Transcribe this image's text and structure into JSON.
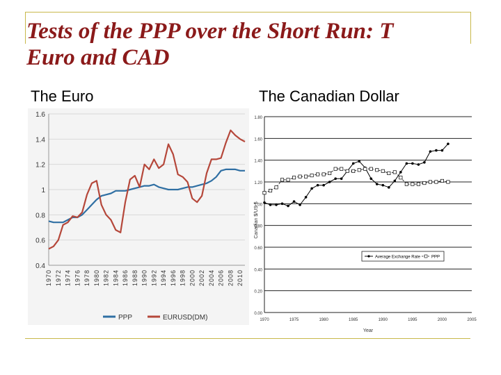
{
  "slide": {
    "title_line1": "Tests of the PPP over the Short Run: T",
    "title_line2": "Euro and CAD",
    "left_heading": "The Euro",
    "right_heading": "The Canadian Dollar",
    "colors": {
      "title": "#8b1a1a",
      "frame": "#c8b84a",
      "ppp_euro": "#2f6fa3",
      "eurusd": "#b5473a"
    }
  },
  "chart_data": [
    {
      "type": "line",
      "title": "",
      "xlabel": "",
      "ylabel": "",
      "ylim": [
        0.4,
        1.6
      ],
      "yticks": [
        "1.6",
        "1.4",
        "1.2",
        "1",
        "0.8",
        "0.6",
        "0.4"
      ],
      "ytick_values": [
        1.6,
        1.4,
        1.2,
        1.0,
        0.8,
        0.6,
        0.4
      ],
      "xlim": [
        1970,
        2011
      ],
      "xticks": [
        "1970",
        "1972",
        "1974",
        "1976",
        "1978",
        "1980",
        "1982",
        "1984",
        "1986",
        "1988",
        "1990",
        "1992",
        "1994",
        "1996",
        "1998",
        "2000",
        "2002",
        "2004",
        "2006",
        "2008",
        "2010"
      ],
      "xtick_values": [
        1970,
        1972,
        1974,
        1976,
        1978,
        1980,
        1982,
        1984,
        1986,
        1988,
        1990,
        1992,
        1994,
        1996,
        1998,
        2000,
        2002,
        2004,
        2006,
        2008,
        2010
      ],
      "grid": "horizontal",
      "legend": "bottom",
      "series": [
        {
          "name": "PPP",
          "color": "#2f6fa3",
          "x": [
            1970,
            1971,
            1972,
            1973,
            1974,
            1975,
            1976,
            1977,
            1978,
            1979,
            1980,
            1981,
            1982,
            1983,
            1984,
            1985,
            1986,
            1987,
            1988,
            1989,
            1990,
            1991,
            1992,
            1993,
            1994,
            1995,
            1996,
            1997,
            1998,
            1999,
            2000,
            2001,
            2002,
            2003,
            2004,
            2005,
            2006,
            2007,
            2008,
            2009,
            2010,
            2011
          ],
          "y": [
            0.75,
            0.74,
            0.74,
            0.74,
            0.76,
            0.78,
            0.78,
            0.8,
            0.84,
            0.88,
            0.92,
            0.95,
            0.96,
            0.97,
            0.99,
            0.99,
            0.99,
            1.0,
            1.01,
            1.02,
            1.03,
            1.03,
            1.04,
            1.02,
            1.01,
            1.0,
            1.0,
            1.0,
            1.01,
            1.02,
            1.02,
            1.03,
            1.04,
            1.05,
            1.07,
            1.1,
            1.15,
            1.16,
            1.16,
            1.16,
            1.15,
            1.15
          ]
        },
        {
          "name": "EURUSD(DM)",
          "color": "#b5473a",
          "x": [
            1970,
            1971,
            1972,
            1973,
            1974,
            1975,
            1976,
            1977,
            1978,
            1979,
            1980,
            1981,
            1982,
            1983,
            1984,
            1985,
            1986,
            1987,
            1988,
            1989,
            1990,
            1991,
            1992,
            1993,
            1994,
            1995,
            1996,
            1997,
            1998,
            1999,
            2000,
            2001,
            2002,
            2003,
            2004,
            2005,
            2006,
            2007,
            2008,
            2009,
            2010,
            2011
          ],
          "y": [
            0.53,
            0.55,
            0.6,
            0.72,
            0.74,
            0.79,
            0.78,
            0.82,
            0.96,
            1.05,
            1.07,
            0.88,
            0.8,
            0.76,
            0.68,
            0.66,
            0.9,
            1.08,
            1.11,
            1.02,
            1.2,
            1.16,
            1.24,
            1.17,
            1.2,
            1.36,
            1.28,
            1.12,
            1.1,
            1.06,
            0.93,
            0.9,
            0.95,
            1.13,
            1.24,
            1.24,
            1.25,
            1.37,
            1.47,
            1.43,
            1.4,
            1.38
          ]
        }
      ]
    },
    {
      "type": "line",
      "title": "",
      "xlabel": "Year",
      "ylabel": "Canadian $/US $",
      "ylim": [
        0.0,
        1.8
      ],
      "yticks": [
        "1.80",
        "1.60",
        "1.40",
        "1.20",
        "1.00",
        "0.80",
        "0.60",
        "0.40",
        "0.20",
        "0.00"
      ],
      "ytick_values": [
        1.8,
        1.6,
        1.4,
        1.2,
        1.0,
        0.8,
        0.6,
        0.4,
        0.2,
        0.0
      ],
      "xlim": [
        1970,
        2005
      ],
      "xticks": [
        "1970",
        "1975",
        "1980",
        "1985",
        "1990",
        "1995",
        "2000",
        "2005"
      ],
      "xtick_values": [
        1970,
        1975,
        1980,
        1985,
        1990,
        1995,
        2000,
        2005
      ],
      "grid": "horizontal",
      "legend": "inside-right",
      "series": [
        {
          "name": "Average Exchange Rate",
          "color": "#000000",
          "marker": "dot",
          "x": [
            1970,
            1971,
            1972,
            1973,
            1974,
            1975,
            1976,
            1977,
            1978,
            1979,
            1980,
            1981,
            1982,
            1983,
            1984,
            1985,
            1986,
            1987,
            1988,
            1989,
            1990,
            1991,
            1992,
            1993,
            1994,
            1995,
            1996,
            1997,
            1998,
            1999,
            2000,
            2001
          ],
          "y": [
            1.01,
            0.99,
            0.99,
            1.0,
            0.98,
            1.02,
            0.99,
            1.06,
            1.14,
            1.17,
            1.17,
            1.2,
            1.23,
            1.23,
            1.3,
            1.37,
            1.39,
            1.33,
            1.23,
            1.18,
            1.17,
            1.15,
            1.21,
            1.29,
            1.37,
            1.37,
            1.36,
            1.38,
            1.48,
            1.49,
            1.49,
            1.55
          ]
        },
        {
          "name": "PPP",
          "color": "#000000",
          "marker": "square",
          "x": [
            1970,
            1971,
            1972,
            1973,
            1974,
            1975,
            1976,
            1977,
            1978,
            1979,
            1980,
            1981,
            1982,
            1983,
            1984,
            1985,
            1986,
            1987,
            1988,
            1989,
            1990,
            1991,
            1992,
            1993,
            1994,
            1995,
            1996,
            1997,
            1998,
            1999,
            2000,
            2001
          ],
          "y": [
            1.1,
            1.12,
            1.15,
            1.22,
            1.22,
            1.24,
            1.25,
            1.25,
            1.26,
            1.27,
            1.27,
            1.28,
            1.32,
            1.32,
            1.3,
            1.3,
            1.31,
            1.32,
            1.32,
            1.31,
            1.3,
            1.28,
            1.29,
            1.24,
            1.18,
            1.18,
            1.18,
            1.19,
            1.2,
            1.2,
            1.21,
            1.2
          ]
        }
      ]
    }
  ]
}
